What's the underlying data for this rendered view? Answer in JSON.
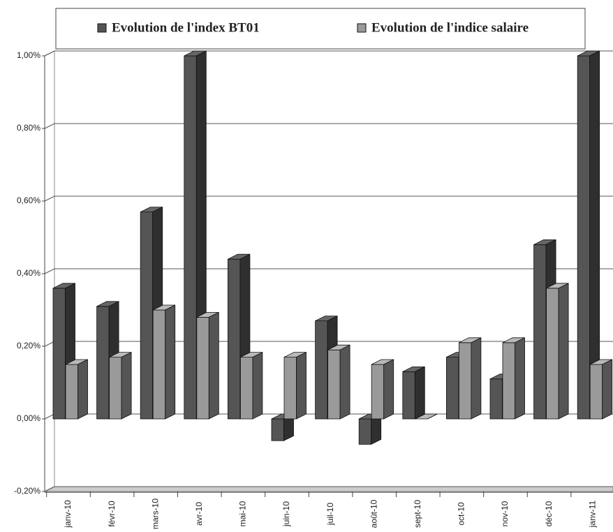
{
  "chart_data": {
    "type": "bar3d",
    "categories": [
      "janv-10",
      "févr-10",
      "mars-10",
      "avr-10",
      "mai-10",
      "juin-10",
      "juil-10",
      "août-10",
      "sept-10",
      "oct-10",
      "nov-10",
      "déc-10",
      "janv-11"
    ],
    "series": [
      {
        "name": "Evolution de l'index BT01",
        "color": "#555555",
        "values": [
          0.36,
          0.31,
          0.57,
          1.0,
          0.44,
          -0.06,
          0.27,
          -0.07,
          0.13,
          0.17,
          0.11,
          0.48,
          1.0
        ]
      },
      {
        "name": "Evolution de l'indice salaire",
        "color": "#9a9a9a",
        "values": [
          0.15,
          0.17,
          0.3,
          0.28,
          0.17,
          0.17,
          0.19,
          0.15,
          0.0,
          0.21,
          0.21,
          0.36,
          0.15
        ]
      }
    ],
    "ylim": [
      -0.2,
      1.0
    ],
    "yticks": [
      {
        "value": -0.2,
        "label": "-0,20%"
      },
      {
        "value": 0,
        "label": "0,00%"
      },
      {
        "value": 0.2,
        "label": "0,20%"
      },
      {
        "value": 0.4,
        "label": "0,40%"
      },
      {
        "value": 0.6,
        "label": "0,60%"
      },
      {
        "value": 0.8,
        "label": "0,80%"
      },
      {
        "value": 1.0,
        "label": "1,00%"
      }
    ],
    "grid": true,
    "legend": "top"
  }
}
